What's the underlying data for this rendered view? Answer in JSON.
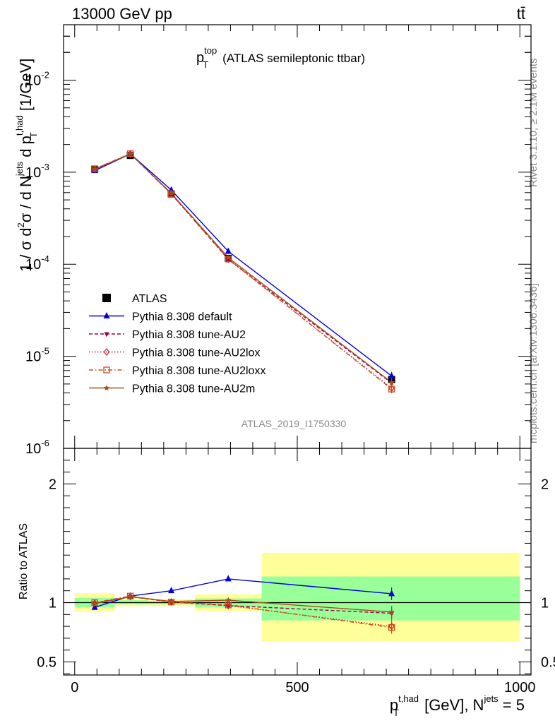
{
  "header": {
    "energy_label": "13000 GeV pp",
    "process_label": "tt̄"
  },
  "side_labels": {
    "rivet": "Rivet 3.1.10, ≥ 2.1M events",
    "mcplots": "mcplots.cern.ch [arXiv:1306.3436]"
  },
  "chart_data": [
    {
      "type": "line",
      "title_main": "p",
      "title_sup": "top",
      "title_sub": "T",
      "title_rest": "(ATLAS semileptonic ttbar)",
      "watermark": "ATLAS_2019_I1750330",
      "yscale": "log",
      "ylim": [
        1e-06,
        0.04
      ],
      "xlim": [
        -25,
        1025
      ],
      "y_ticks": [
        {
          "value": 1e-06,
          "base": "10",
          "exp": "-6"
        },
        {
          "value": 1e-05,
          "base": "10",
          "exp": "-5"
        },
        {
          "value": 0.0001,
          "base": "10",
          "exp": "-4"
        },
        {
          "value": 0.001,
          "base": "10",
          "exp": "-3"
        },
        {
          "value": 0.01,
          "base": "10",
          "exp": "-2"
        }
      ],
      "ylabel": {
        "a": "1 / σ d",
        "a_sup": "2",
        "b": "σ /  d N",
        "b_sup": "jets",
        "c": " d p",
        "c_sup": "t,had",
        "c_sub": "T",
        "d": " [1/GeV]"
      },
      "x": [
        45,
        125,
        217,
        345,
        712
      ],
      "data": {
        "name": "ATLAS",
        "values": [
          0.00108,
          0.00152,
          0.00058,
          0.000116,
          5.6e-06
        ]
      },
      "series": [
        {
          "name": "Pythia 8.308 default",
          "color": "#0000dd",
          "dash": "",
          "marker": "triangle-up",
          "values": [
            0.00104,
            0.00158,
            0.00064,
            0.000138,
            6.1e-06
          ]
        },
        {
          "name": "Pythia 8.308 tune-AU2",
          "color": "#a0004a",
          "dash": "5,3",
          "marker": "triangle-down",
          "values": [
            0.00108,
            0.00158,
            0.00058,
            0.000113,
            5.1e-06
          ]
        },
        {
          "name": "Pythia 8.308 tune-AU2lox",
          "color": "#c0203a",
          "dash": "1.5,2.5",
          "marker": "diamond-open",
          "values": [
            0.00108,
            0.00158,
            0.00059,
            0.000113,
            4.5e-06
          ]
        },
        {
          "name": "Pythia 8.308 tune-AU2loxx",
          "color": "#d04a18",
          "dash": "6,3,1.5,3",
          "marker": "square-open",
          "values": [
            0.00109,
            0.00159,
            0.00058,
            0.000114,
            4.4e-06
          ]
        },
        {
          "name": "Pythia 8.308 tune-AU2m",
          "color": "#a0521e",
          "dash": "",
          "marker": "star",
          "values": [
            0.00107,
            0.00158,
            0.00059,
            0.000118,
            5.2e-06
          ]
        }
      ]
    },
    {
      "type": "line",
      "ylabel": "Ratio to ATLAS",
      "ylim": [
        0.39,
        2.3
      ],
      "y_ticks": [
        {
          "value": 0.5,
          "label": "0.5"
        },
        {
          "value": 1,
          "label": "1"
        },
        {
          "value": 2,
          "label": "2"
        }
      ],
      "x_ticks": [
        {
          "value": 0,
          "label": "0"
        },
        {
          "value": 500,
          "label": "500"
        },
        {
          "value": 1000,
          "label": "1000"
        }
      ],
      "xlabel": {
        "a": "p",
        "a_sup": "t,had",
        "a_sub": "T",
        "b": " [GeV], N",
        "b_sup": "jets",
        "c": " = 5"
      },
      "bands": [
        {
          "x0": 0,
          "x1": 90,
          "yellow": [
            0.92,
            1.08
          ],
          "green": [
            0.96,
            1.04
          ]
        },
        {
          "x0": 90,
          "x1": 165,
          "yellow": [
            0.97,
            1.04
          ],
          "green": [
            0.985,
            1.02
          ]
        },
        {
          "x0": 165,
          "x1": 270,
          "yellow": [
            0.97,
            1.03
          ],
          "green": [
            0.985,
            1.015
          ]
        },
        {
          "x0": 270,
          "x1": 420,
          "yellow": [
            0.93,
            1.07
          ],
          "green": [
            0.96,
            1.035
          ]
        },
        {
          "x0": 420,
          "x1": 1000,
          "yellow": [
            0.67,
            1.42
          ],
          "green": [
            0.85,
            1.22
          ]
        }
      ],
      "series": [
        {
          "name": "Pythia 8.308 default",
          "values": [
            0.96,
            1.055,
            1.1,
            1.2,
            1.075
          ]
        },
        {
          "name": "Pythia 8.308 tune-AU2",
          "values": [
            0.995,
            1.05,
            1.005,
            0.975,
            0.91
          ]
        },
        {
          "name": "Pythia 8.308 tune-AU2lox",
          "values": [
            0.995,
            1.05,
            1.005,
            0.975,
            0.8
          ]
        },
        {
          "name": "Pythia 8.308 tune-AU2loxx",
          "values": [
            1.0,
            1.055,
            1.005,
            0.98,
            0.79
          ]
        },
        {
          "name": "Pythia 8.308 tune-AU2m",
          "values": [
            0.99,
            1.05,
            1.01,
            1.02,
            0.92
          ]
        }
      ]
    }
  ]
}
